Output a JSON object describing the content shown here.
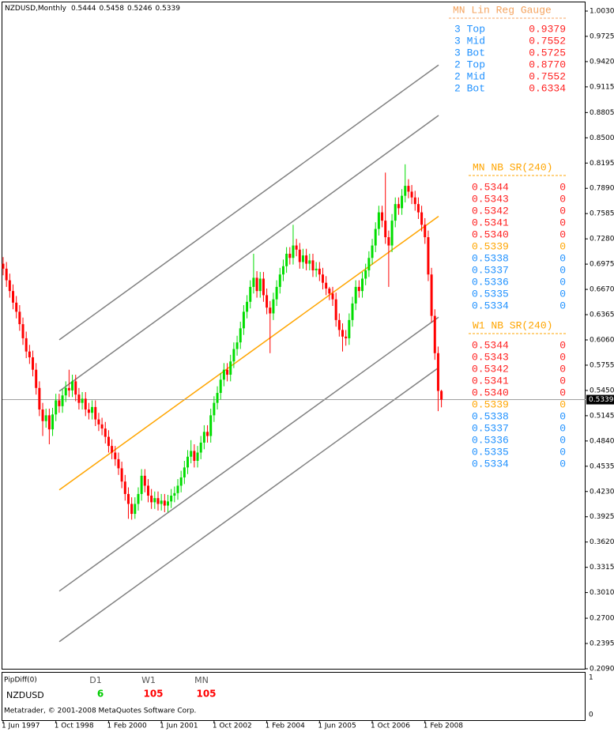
{
  "chart_data": {
    "type": "candlestick",
    "title": "NZDUSD,Monthly",
    "categories": [
      "1 Jun 1997",
      null,
      null,
      null,
      null,
      null,
      null,
      null,
      null,
      null,
      null,
      null,
      null,
      null,
      null,
      null,
      "1 Oct 1998",
      null,
      null,
      null,
      null,
      null,
      null,
      null,
      null,
      null,
      null,
      null,
      null,
      null,
      null,
      null,
      "1 Feb 2000",
      null,
      null,
      null,
      null,
      null,
      null,
      null,
      null,
      null,
      null,
      null,
      null,
      null,
      null,
      null,
      "1 Jun 2001",
      null,
      null,
      null,
      null,
      null,
      null,
      null,
      null,
      null,
      null,
      null,
      null,
      null,
      null,
      null,
      "1 Oct 2002",
      null,
      null,
      null,
      null,
      null,
      null,
      null,
      null,
      null,
      null,
      null,
      null,
      null,
      null,
      null,
      "1 Feb 2004",
      null,
      null,
      null,
      null,
      null,
      null,
      null,
      null,
      null,
      null,
      null,
      null,
      null,
      null,
      null,
      "1 Jun 2005",
      null,
      null,
      null,
      null,
      null,
      null,
      null,
      null,
      null,
      null,
      null,
      null,
      null,
      null,
      null,
      "1 Oct 2006",
      null,
      null,
      null,
      null,
      null,
      null,
      null,
      null,
      null,
      null,
      null,
      null,
      null,
      null,
      null,
      "1 Feb 2008",
      null,
      null,
      null,
      null,
      null
    ],
    "open": [
      0.698,
      0.692,
      0.678,
      0.665,
      0.651,
      0.64,
      0.625,
      0.608,
      0.592,
      0.585,
      0.57,
      0.548,
      0.522,
      0.508,
      0.515,
      0.498,
      0.516,
      0.533,
      0.526,
      0.539,
      0.548,
      0.545,
      0.556,
      0.54,
      0.53,
      0.535,
      0.522,
      0.518,
      0.525,
      0.51,
      0.504,
      0.499,
      0.489,
      0.478,
      0.47,
      0.462,
      0.451,
      0.435,
      0.42,
      0.408,
      0.396,
      0.408,
      0.42,
      0.442,
      0.43,
      0.418,
      0.41,
      0.415,
      0.408,
      0.412,
      0.406,
      0.411,
      0.418,
      0.421,
      0.43,
      0.44,
      0.452,
      0.465,
      0.472,
      0.46,
      0.47,
      0.482,
      0.495,
      0.49,
      0.515,
      0.53,
      0.542,
      0.558,
      0.57,
      0.564,
      0.58,
      0.595,
      0.603,
      0.62,
      0.64,
      0.652,
      0.67,
      0.681,
      0.665,
      0.68,
      0.66,
      0.645,
      0.638,
      0.655,
      0.67,
      0.685,
      0.695,
      0.71,
      0.705,
      0.72,
      0.715,
      0.7,
      0.708,
      0.698,
      0.702,
      0.69,
      0.692,
      0.685,
      0.675,
      0.668,
      0.662,
      0.655,
      0.63,
      0.618,
      0.61,
      0.608,
      0.63,
      0.65,
      0.67,
      0.665,
      0.68,
      0.69,
      0.705,
      0.72,
      0.74,
      0.76,
      0.75,
      0.73,
      0.72,
      0.75,
      0.77,
      0.765,
      0.78,
      0.792,
      0.785,
      0.778,
      0.77,
      0.76,
      0.745,
      0.73,
      0.685,
      0.635,
      0.59,
      0.5444
    ],
    "high": [
      0.706,
      0.7,
      0.686,
      0.673,
      0.659,
      0.648,
      0.633,
      0.616,
      0.6,
      0.593,
      0.578,
      0.556,
      0.53,
      0.523,
      0.523,
      0.524,
      0.541,
      0.541,
      0.547,
      0.556,
      0.57,
      0.564,
      0.564,
      0.548,
      0.543,
      0.543,
      0.53,
      0.533,
      0.533,
      0.518,
      0.512,
      0.507,
      0.497,
      0.486,
      0.478,
      0.47,
      0.459,
      0.443,
      0.428,
      0.416,
      0.416,
      0.428,
      0.45,
      0.45,
      0.438,
      0.426,
      0.423,
      0.423,
      0.42,
      0.42,
      0.419,
      0.426,
      0.429,
      0.438,
      0.448,
      0.46,
      0.473,
      0.485,
      0.48,
      0.478,
      0.49,
      0.503,
      0.503,
      0.523,
      0.538,
      0.55,
      0.566,
      0.578,
      0.578,
      0.588,
      0.603,
      0.611,
      0.628,
      0.648,
      0.66,
      0.678,
      0.71,
      0.689,
      0.688,
      0.688,
      0.668,
      0.653,
      0.663,
      0.678,
      0.693,
      0.703,
      0.718,
      0.718,
      0.745,
      0.728,
      0.723,
      0.716,
      0.716,
      0.71,
      0.71,
      0.7,
      0.7,
      0.693,
      0.683,
      0.67,
      0.67,
      0.663,
      0.638,
      0.626,
      0.618,
      0.638,
      0.658,
      0.678,
      0.678,
      0.688,
      0.698,
      0.713,
      0.728,
      0.748,
      0.768,
      0.768,
      0.808,
      0.738,
      0.758,
      0.778,
      0.778,
      0.788,
      0.818,
      0.8,
      0.793,
      0.786,
      0.778,
      0.768,
      0.753,
      0.738,
      0.693,
      0.643,
      0.598,
      0.5458
    ],
    "low": [
      0.684,
      0.67,
      0.657,
      0.643,
      0.632,
      0.617,
      0.6,
      0.584,
      0.577,
      0.562,
      0.54,
      0.514,
      0.49,
      0.5,
      0.48,
      0.49,
      0.508,
      0.518,
      0.518,
      0.531,
      0.537,
      0.537,
      0.532,
      0.522,
      0.522,
      0.514,
      0.51,
      0.51,
      0.502,
      0.496,
      0.491,
      0.481,
      0.47,
      0.462,
      0.454,
      0.443,
      0.427,
      0.412,
      0.39,
      0.389,
      0.39,
      0.4,
      0.412,
      0.422,
      0.41,
      0.402,
      0.402,
      0.4,
      0.4,
      0.398,
      0.398,
      0.403,
      0.41,
      0.413,
      0.422,
      0.432,
      0.444,
      0.457,
      0.452,
      0.452,
      0.462,
      0.474,
      0.482,
      0.482,
      0.507,
      0.522,
      0.534,
      0.55,
      0.556,
      0.556,
      0.572,
      0.587,
      0.595,
      0.612,
      0.632,
      0.644,
      0.662,
      0.657,
      0.657,
      0.652,
      0.637,
      0.59,
      0.63,
      0.647,
      0.662,
      0.677,
      0.687,
      0.697,
      0.697,
      0.707,
      0.692,
      0.692,
      0.69,
      0.69,
      0.682,
      0.682,
      0.677,
      0.667,
      0.66,
      0.654,
      0.647,
      0.622,
      0.61,
      0.592,
      0.599,
      0.6,
      0.622,
      0.642,
      0.657,
      0.657,
      0.672,
      0.682,
      0.697,
      0.712,
      0.732,
      0.742,
      0.722,
      0.67,
      0.712,
      0.742,
      0.757,
      0.757,
      0.772,
      0.777,
      0.77,
      0.762,
      0.752,
      0.737,
      0.722,
      0.677,
      0.627,
      0.582,
      0.52,
      0.5246
    ],
    "close": [
      0.692,
      0.678,
      0.665,
      0.651,
      0.64,
      0.625,
      0.608,
      0.592,
      0.585,
      0.57,
      0.548,
      0.522,
      0.508,
      0.515,
      0.498,
      0.516,
      0.533,
      0.526,
      0.539,
      0.548,
      0.545,
      0.556,
      0.54,
      0.53,
      0.535,
      0.522,
      0.518,
      0.525,
      0.51,
      0.504,
      0.499,
      0.489,
      0.478,
      0.47,
      0.462,
      0.451,
      0.435,
      0.42,
      0.408,
      0.396,
      0.408,
      0.42,
      0.442,
      0.43,
      0.418,
      0.41,
      0.415,
      0.408,
      0.412,
      0.406,
      0.411,
      0.418,
      0.421,
      0.43,
      0.44,
      0.452,
      0.465,
      0.472,
      0.46,
      0.47,
      0.482,
      0.495,
      0.49,
      0.515,
      0.53,
      0.542,
      0.558,
      0.57,
      0.564,
      0.58,
      0.595,
      0.603,
      0.62,
      0.64,
      0.652,
      0.67,
      0.681,
      0.665,
      0.68,
      0.66,
      0.645,
      0.638,
      0.655,
      0.67,
      0.685,
      0.695,
      0.71,
      0.705,
      0.72,
      0.715,
      0.7,
      0.708,
      0.698,
      0.702,
      0.69,
      0.692,
      0.685,
      0.675,
      0.668,
      0.662,
      0.655,
      0.63,
      0.618,
      0.61,
      0.608,
      0.63,
      0.65,
      0.67,
      0.665,
      0.68,
      0.69,
      0.705,
      0.72,
      0.74,
      0.76,
      0.75,
      0.73,
      0.72,
      0.75,
      0.77,
      0.765,
      0.78,
      0.792,
      0.785,
      0.778,
      0.77,
      0.76,
      0.745,
      0.73,
      0.685,
      0.635,
      0.59,
      0.5444,
      0.5339
    ],
    "up_color": "#00dd00",
    "down_color": "#ff0000",
    "ylim": [
      0.209,
      1.003
    ],
    "yticks": [
      {
        "value": 1.003,
        "label": "1.0030"
      },
      0.9725,
      {
        "value": 0.942,
        "label": "0.9420"
      },
      0.9115,
      0.8805,
      {
        "value": 0.85,
        "label": "0.8500"
      },
      0.8195,
      {
        "value": 0.789,
        "label": "0.7890"
      },
      0.7585,
      {
        "value": 0.728,
        "label": "0.7280"
      },
      0.6975,
      {
        "value": 0.667,
        "label": "0.6670"
      },
      0.6365,
      {
        "value": 0.606,
        "label": "0.6060"
      },
      0.5755,
      {
        "value": 0.545,
        "label": "0.5450"
      },
      0.5145,
      {
        "value": 0.484,
        "label": "0.4840"
      },
      0.4535,
      {
        "value": 0.423,
        "label": "0.4230"
      },
      0.3925,
      {
        "value": 0.362,
        "label": "0.3620"
      },
      0.3315,
      {
        "value": 0.301,
        "label": "0.3010"
      },
      {
        "value": 0.27,
        "label": "0.2700"
      },
      0.2395,
      {
        "value": 0.209,
        "label": "0.2090"
      }
    ],
    "bid": 0.5339,
    "channel": [
      {
        "color": "#808080",
        "values": [
          0.6061,
          0.9379
        ]
      },
      {
        "color": "#808080",
        "values": [
          0.5441,
          0.877
        ]
      },
      {
        "color": "#ffa500",
        "values": [
          0.4249,
          0.7552
        ]
      },
      {
        "color": "#808080",
        "values": [
          0.3027,
          0.6334
        ]
      },
      {
        "color": "#808080",
        "values": [
          0.2417,
          0.5725
        ]
      }
    ]
  },
  "gauge": {
    "title": "MN Lin Reg Gauge",
    "rows": [
      [
        "3 Top",
        "0.9379"
      ],
      [
        "3 Mid",
        "0.7552"
      ],
      [
        "3 Bot",
        "0.5725"
      ],
      [
        "2 Top",
        "0.8770"
      ],
      [
        "2 Mid",
        "0.7552"
      ],
      [
        "2 Bot",
        "0.6334"
      ]
    ]
  },
  "sr_panels": [
    {
      "title": "MN NB SR(240)",
      "rows": [
        {
          "price": "0.5344",
          "count": "0",
          "color": "#ff2020"
        },
        {
          "price": "0.5343",
          "count": "0",
          "color": "#ff2020"
        },
        {
          "price": "0.5342",
          "count": "0",
          "color": "#ff2020"
        },
        {
          "price": "0.5341",
          "count": "0",
          "color": "#ff2020"
        },
        {
          "price": "0.5340",
          "count": "0",
          "color": "#ff2020"
        },
        {
          "price": "0.5339",
          "count": "0",
          "color": "#ffa500"
        },
        {
          "price": "0.5338",
          "count": "0",
          "color": "#1e90ff"
        },
        {
          "price": "0.5337",
          "count": "0",
          "color": "#1e90ff"
        },
        {
          "price": "0.5336",
          "count": "0",
          "color": "#1e90ff"
        },
        {
          "price": "0.5335",
          "count": "0",
          "color": "#1e90ff"
        },
        {
          "price": "0.5334",
          "count": "0",
          "color": "#1e90ff"
        }
      ]
    },
    {
      "title": "W1 NB SR(240)",
      "rows": [
        {
          "price": "0.5344",
          "count": "0",
          "color": "#ff2020"
        },
        {
          "price": "0.5343",
          "count": "0",
          "color": "#ff2020"
        },
        {
          "price": "0.5342",
          "count": "0",
          "color": "#ff2020"
        },
        {
          "price": "0.5341",
          "count": "0",
          "color": "#ff2020"
        },
        {
          "price": "0.5340",
          "count": "0",
          "color": "#ff2020"
        },
        {
          "price": "0.5339",
          "count": "0",
          "color": "#ffa500"
        },
        {
          "price": "0.5338",
          "count": "0",
          "color": "#1e90ff"
        },
        {
          "price": "0.5337",
          "count": "0",
          "color": "#1e90ff"
        },
        {
          "price": "0.5336",
          "count": "0",
          "color": "#1e90ff"
        },
        {
          "price": "0.5335",
          "count": "0",
          "color": "#1e90ff"
        },
        {
          "price": "0.5334",
          "count": "0",
          "color": "#1e90ff"
        }
      ]
    }
  ],
  "subwindow": {
    "title": "PipDiff(0)",
    "symbol": "NZDUSD",
    "axis_top": "1",
    "axis_bottom": "0",
    "columns": [
      {
        "name": "D1",
        "value": "6",
        "color": "#00cc00"
      },
      {
        "name": "W1",
        "value": "105",
        "color": "#ff0000"
      },
      {
        "name": "MN",
        "value": "105",
        "color": "#ff0000"
      }
    ]
  },
  "footer": "Metatrader, © 2001-2008 MetaQuotes Software Corp."
}
